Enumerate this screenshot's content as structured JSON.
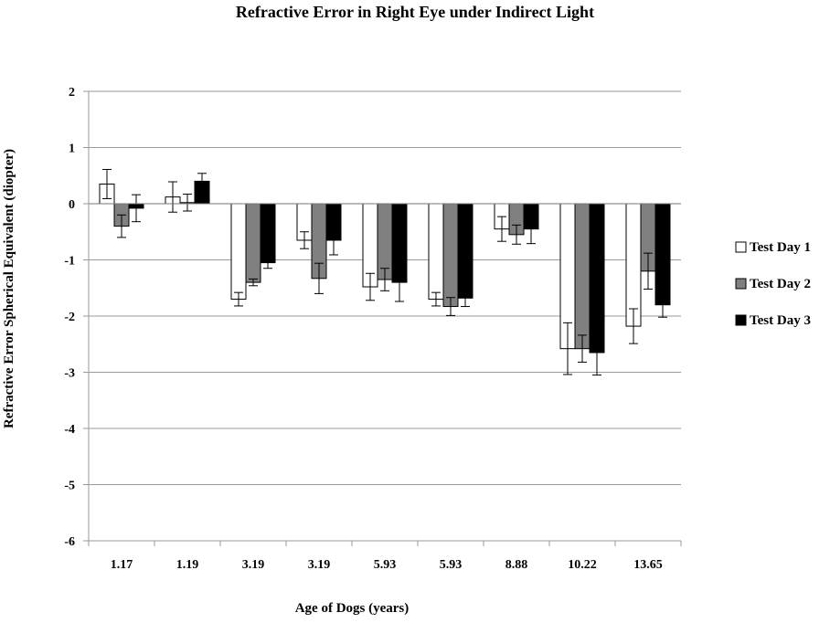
{
  "chart_data": {
    "type": "bar",
    "title": "Refractive Error in Right Eye under Indirect Light",
    "xlabel": "Age of Dogs (years)",
    "ylabel": "Refractive Error Spherical Equivalent (diopter)",
    "ylim": [
      -6,
      2
    ],
    "yticks": [
      2,
      1,
      0,
      -1,
      -2,
      -3,
      -4,
      -5,
      -6
    ],
    "grid": true,
    "legend_position": "right",
    "categories": [
      "1.17",
      "1.19",
      "3.19",
      "3.19",
      "5.93",
      "5.93",
      "8.88",
      "10.22",
      "13.65"
    ],
    "series": [
      {
        "name": "Test Day 1",
        "color": "#ffffff",
        "values": [
          0.35,
          0.12,
          -1.7,
          -0.65,
          -1.48,
          -1.7,
          -0.45,
          -2.58,
          -2.18
        ],
        "errors": [
          0.26,
          0.27,
          0.12,
          0.15,
          0.24,
          0.12,
          0.22,
          0.46,
          0.31
        ]
      },
      {
        "name": "Test Day 2",
        "color": "#808080",
        "values": [
          -0.4,
          0.02,
          -1.4,
          -1.33,
          -1.35,
          -1.83,
          -0.55,
          -2.58,
          -1.2
        ],
        "errors": [
          0.2,
          0.15,
          0.06,
          0.27,
          0.2,
          0.16,
          0.17,
          0.24,
          0.32
        ]
      },
      {
        "name": "Test Day 3",
        "color": "#000000",
        "values": [
          -0.08,
          0.4,
          -1.05,
          -0.65,
          -1.4,
          -1.68,
          -0.45,
          -2.65,
          -1.8
        ],
        "errors": [
          0.24,
          0.14,
          0.1,
          0.26,
          0.34,
          0.15,
          0.26,
          0.4,
          0.22
        ]
      }
    ]
  }
}
